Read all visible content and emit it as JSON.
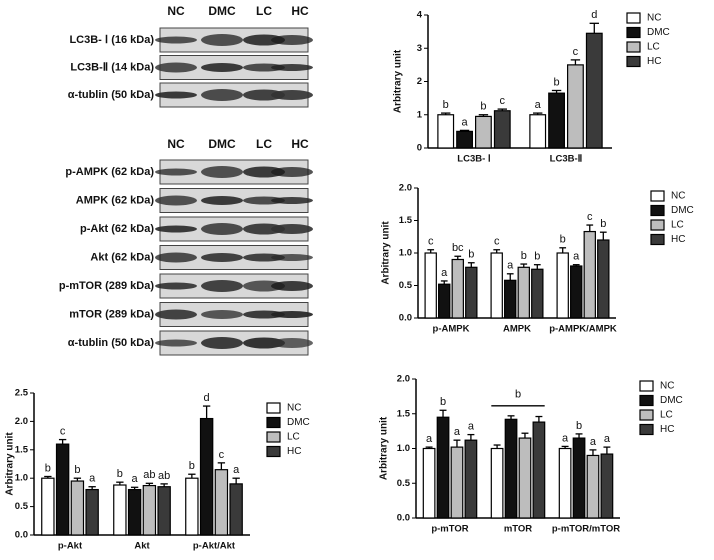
{
  "blots": {
    "top": {
      "lanes": [
        "NC",
        "DMC",
        "LC",
        "HC"
      ],
      "rows": [
        "LC3B- Ⅰ (16 kDa)",
        "LC3B-Ⅱ (14 kDa)",
        "α-tublin (50 kDa)"
      ]
    },
    "bottom": {
      "lanes": [
        "NC",
        "DMC",
        "LC",
        "HC"
      ],
      "rows": [
        "p-AMPK (62 kDa)",
        "AMPK (62 kDa)",
        "p-Akt (62 kDa)",
        "Akt (62 kDa)",
        "p-mTOR (289 kDa)",
        "mTOR (289 kDa)",
        "α-tublin (50 kDa)"
      ]
    }
  },
  "chart_data": [
    {
      "type": "bar",
      "ylabel": "Arbitrary unit",
      "categories": [
        "LC3B- Ⅰ",
        "LC3B-Ⅱ"
      ],
      "ylim": [
        0,
        4
      ],
      "yticks": [
        0,
        1,
        2,
        3,
        4
      ],
      "legend": "right",
      "series": [
        {
          "name": "NC",
          "color": "#ffffff",
          "values": [
            1.0,
            1.0
          ],
          "errors": [
            0.05,
            0.05
          ],
          "letters": [
            "b",
            "a"
          ]
        },
        {
          "name": "DMC",
          "color": "#111111",
          "values": [
            0.5,
            1.65
          ],
          "errors": [
            0.03,
            0.08
          ],
          "letters": [
            "a",
            "b"
          ]
        },
        {
          "name": "LC",
          "color": "#bdbdbd",
          "values": [
            0.95,
            2.5
          ],
          "errors": [
            0.05,
            0.15
          ],
          "letters": [
            "b",
            "c"
          ]
        },
        {
          "name": "HC",
          "color": "#3a3a3a",
          "values": [
            1.12,
            3.45
          ],
          "errors": [
            0.05,
            0.3
          ],
          "letters": [
            "c",
            "d"
          ]
        }
      ]
    },
    {
      "type": "bar",
      "ylabel": "Arbitrary unit",
      "categories": [
        "p-AMPK",
        "AMPK",
        "p-AMPK/AMPK"
      ],
      "ylim": [
        0,
        2
      ],
      "yticks": [
        {
          "value": 0,
          "label": "0.0"
        },
        {
          "value": 0.5,
          "label": "0.5"
        },
        {
          "value": 1,
          "label": "1.0"
        },
        {
          "value": 1.5,
          "label": "1.5"
        },
        {
          "value": 2,
          "label": "2.0"
        }
      ],
      "legend": "right",
      "series": [
        {
          "name": "NC",
          "color": "#ffffff",
          "values": [
            1.0,
            1.0,
            1.0
          ],
          "errors": [
            0.05,
            0.05,
            0.08
          ],
          "letters": [
            "c",
            "c",
            "b"
          ]
        },
        {
          "name": "DMC",
          "color": "#111111",
          "values": [
            0.52,
            0.58,
            0.8
          ],
          "errors": [
            0.05,
            0.1,
            0.02
          ],
          "letters": [
            "a",
            "a",
            "a"
          ]
        },
        {
          "name": "LC",
          "color": "#bdbdbd",
          "values": [
            0.9,
            0.78,
            1.33
          ],
          "errors": [
            0.05,
            0.05,
            0.1
          ],
          "letters": [
            "bc",
            "b",
            "c"
          ]
        },
        {
          "name": "HC",
          "color": "#3a3a3a",
          "values": [
            0.78,
            0.75,
            1.2
          ],
          "errors": [
            0.07,
            0.07,
            0.12
          ],
          "letters": [
            "b",
            "b",
            "b"
          ]
        }
      ]
    },
    {
      "type": "bar",
      "ylabel": "Arbitrary unit",
      "categories": [
        "p-Akt",
        "Akt",
        "p-Akt/Akt"
      ],
      "ylim": [
        0,
        2.5
      ],
      "yticks": [
        {
          "value": 0,
          "label": "0.0"
        },
        {
          "value": 0.5,
          "label": "0.5"
        },
        {
          "value": 1,
          "label": "1.0"
        },
        {
          "value": 1.5,
          "label": "1.5"
        },
        {
          "value": 2,
          "label": "2.0"
        },
        {
          "value": 2.5,
          "label": "2.5"
        }
      ],
      "legend": "right",
      "series": [
        {
          "name": "NC",
          "color": "#ffffff",
          "values": [
            1.0,
            0.88,
            1.0
          ],
          "errors": [
            0.03,
            0.05,
            0.07
          ],
          "letters": [
            "b",
            "b",
            "b"
          ]
        },
        {
          "name": "DMC",
          "color": "#111111",
          "values": [
            1.6,
            0.8,
            2.05
          ],
          "errors": [
            0.08,
            0.04,
            0.22
          ],
          "letters": [
            "c",
            "a",
            "d"
          ]
        },
        {
          "name": "LC",
          "color": "#bdbdbd",
          "values": [
            0.95,
            0.87,
            1.15
          ],
          "errors": [
            0.05,
            0.04,
            0.12
          ],
          "letters": [
            "b",
            "ab",
            "c"
          ]
        },
        {
          "name": "HC",
          "color": "#3a3a3a",
          "values": [
            0.8,
            0.85,
            0.9
          ],
          "errors": [
            0.05,
            0.05,
            0.1
          ],
          "letters": [
            "a",
            "ab",
            "a"
          ]
        }
      ]
    },
    {
      "type": "bar",
      "ylabel": "Arbitrary unit",
      "categories": [
        "p-mTOR",
        "mTOR",
        "p-mTOR/mTOR"
      ],
      "ylim": [
        0,
        2
      ],
      "yticks": [
        {
          "value": 0,
          "label": "0.0"
        },
        {
          "value": 0.5,
          "label": "0.5"
        },
        {
          "value": 1,
          "label": "1.0"
        },
        {
          "value": 1.5,
          "label": "1.5"
        },
        {
          "value": 2,
          "label": "2.0"
        }
      ],
      "legend": "right",
      "bracket_label": "b",
      "series": [
        {
          "name": "NC",
          "color": "#ffffff",
          "values": [
            1.0,
            1.0,
            1.0
          ],
          "errors": [
            0.02,
            0.05,
            0.03
          ],
          "letters": [
            "a",
            null,
            "a"
          ]
        },
        {
          "name": "DMC",
          "color": "#111111",
          "values": [
            1.45,
            1.42,
            1.15
          ],
          "errors": [
            0.1,
            0.05,
            0.06
          ],
          "letters": [
            "b",
            null,
            "b"
          ]
        },
        {
          "name": "LC",
          "color": "#bdbdbd",
          "values": [
            1.02,
            1.15,
            0.9
          ],
          "errors": [
            0.1,
            0.07,
            0.08
          ],
          "letters": [
            "a",
            null,
            "a"
          ]
        },
        {
          "name": "HC",
          "color": "#3a3a3a",
          "values": [
            1.12,
            1.38,
            0.92
          ],
          "errors": [
            0.08,
            0.08,
            0.1
          ],
          "letters": [
            "a",
            null,
            "a"
          ]
        }
      ]
    }
  ]
}
